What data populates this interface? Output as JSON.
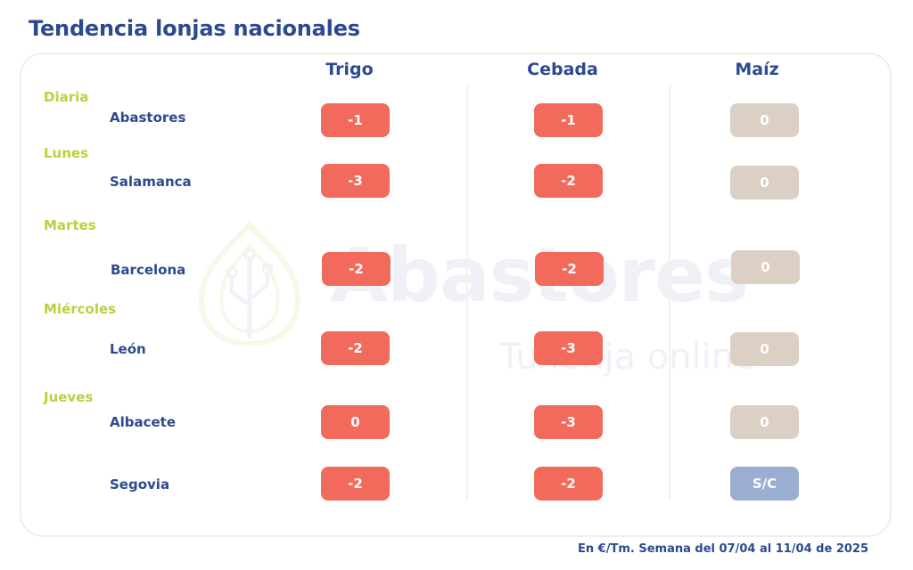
{
  "title": "Tendencia lonjas nacionales",
  "columns": [
    "Trigo",
    "Cebada",
    "Maíz"
  ],
  "days": [
    "Diaria",
    "Lunes",
    "Martes",
    "Miércoles",
    "Jueves"
  ],
  "rows": [
    {
      "city": "Abastores",
      "values": [
        "-1",
        "-1",
        "0"
      ]
    },
    {
      "city": "Salamanca",
      "values": [
        "-3",
        "-2",
        "0"
      ]
    },
    {
      "city": "Barcelona",
      "values": [
        "-2",
        "-2",
        "0"
      ]
    },
    {
      "city": "León",
      "values": [
        "-2",
        "-3",
        "0"
      ]
    },
    {
      "city": "Albacete",
      "values": [
        "0",
        "-3",
        "0"
      ]
    },
    {
      "city": "Segovia",
      "values": [
        "-2",
        "-2",
        "S/C"
      ]
    }
  ],
  "watermark": {
    "brand": "Abastores",
    "tagline": "Tu lonja online"
  },
  "footer": "En €/Tm. Semana del 07/04 al 11/04 de 2025",
  "colors": {
    "title": "#2c4a8f",
    "day_label": "#bdd03e",
    "badge_change": "#f26a5b",
    "badge_zero_maiz": "#dccfc4",
    "badge_sc": "#9aaed1",
    "card_border": "#eef1e0"
  }
}
